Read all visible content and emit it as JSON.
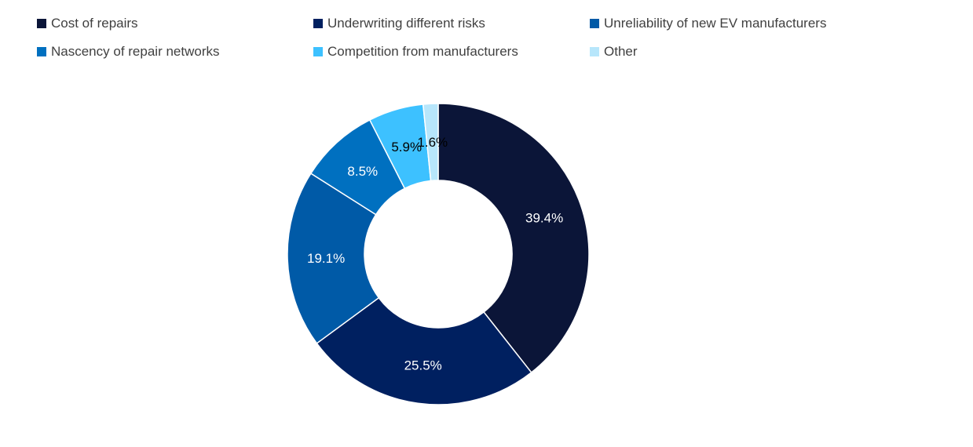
{
  "chart_data": {
    "type": "pie",
    "title": "",
    "legend_position": "top",
    "categories": [
      "Cost of repairs",
      "Underwriting different risks",
      "Unreliability of new EV manufacturers",
      "Nascency of repair networks",
      "Competition from manufacturers",
      "Other"
    ],
    "values": [
      39.4,
      25.5,
      19.1,
      8.5,
      5.9,
      1.6
    ],
    "data_labels": [
      "39.4%",
      "25.5%",
      "19.1%",
      "8.5%",
      "5.9%",
      "1.6%"
    ],
    "colors": [
      "#0b1538",
      "#002060",
      "#005aa7",
      "#0070c0",
      "#3dc1ff",
      "#b7e6fb"
    ],
    "label_colors": [
      "#ffffff",
      "#ffffff",
      "#ffffff",
      "#ffffff",
      "#000000",
      "#000000"
    ],
    "donut": true
  }
}
